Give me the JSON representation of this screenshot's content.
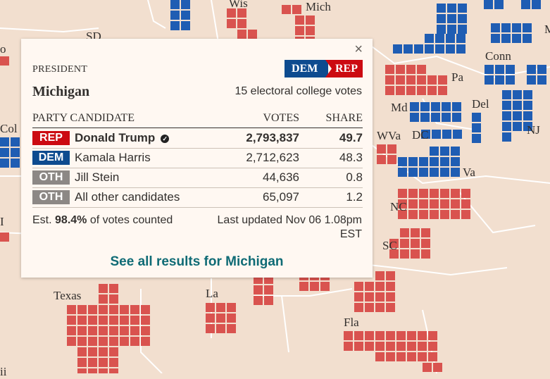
{
  "map": {
    "colors": {
      "background": "#f2dfcf",
      "rep": "#d9534f",
      "dem": "#1f5db3",
      "border": "#ffffff"
    },
    "labels": [
      {
        "key": "wis",
        "text": "Wis"
      },
      {
        "key": "mich",
        "text": "Mich"
      },
      {
        "key": "sd",
        "text": "SD"
      },
      {
        "key": "o",
        "text": "o"
      },
      {
        "key": "conn",
        "text": "Conn"
      },
      {
        "key": "m",
        "text": "M"
      },
      {
        "key": "pa",
        "text": "Pa"
      },
      {
        "key": "md",
        "text": "Md"
      },
      {
        "key": "del",
        "text": "Del"
      },
      {
        "key": "nj",
        "text": "NJ"
      },
      {
        "key": "col",
        "text": "Col"
      },
      {
        "key": "wva",
        "text": "WVa"
      },
      {
        "key": "dc",
        "text": "DC"
      },
      {
        "key": "va",
        "text": "Va"
      },
      {
        "key": "nc",
        "text": "NC"
      },
      {
        "key": "i",
        "text": "I"
      },
      {
        "key": "sc",
        "text": "SC"
      },
      {
        "key": "texas",
        "text": "Texas"
      },
      {
        "key": "la",
        "text": "La"
      },
      {
        "key": "fla",
        "text": "Fla"
      },
      {
        "key": "ii",
        "text": "ii"
      }
    ]
  },
  "popup": {
    "race_label": "PRESIDENT",
    "flip": {
      "from": "DEM",
      "to": "REP"
    },
    "state": "Michigan",
    "electoral_votes": "15 electoral college votes",
    "headers": {
      "party_candidate": "PARTY CANDIDATE",
      "votes": "VOTES",
      "share": "SHARE"
    },
    "rows": [
      {
        "party": "REP",
        "name": "Donald Trump",
        "votes": "2,793,837",
        "share": "49.7",
        "color": "#cc0a11"
      },
      {
        "party": "DEM",
        "name": "Kamala Harris",
        "votes": "2,712,623",
        "share": "48.3",
        "color": "#0d4b8f"
      },
      {
        "party": "OTH",
        "name": "Jill Stein",
        "votes": "44,636",
        "share": "0.8",
        "color": "#8c8885"
      },
      {
        "party": "OTH",
        "name": "All other candidates",
        "votes": "65,097",
        "share": "1.2",
        "color": "#8c8885"
      }
    ],
    "est_prefix": "Est.",
    "est_value": "98.4%",
    "est_suffix": "of votes counted",
    "updated": "Last updated Nov 06 1.08pm EST",
    "link": "See all results for Michigan",
    "close": "×"
  }
}
